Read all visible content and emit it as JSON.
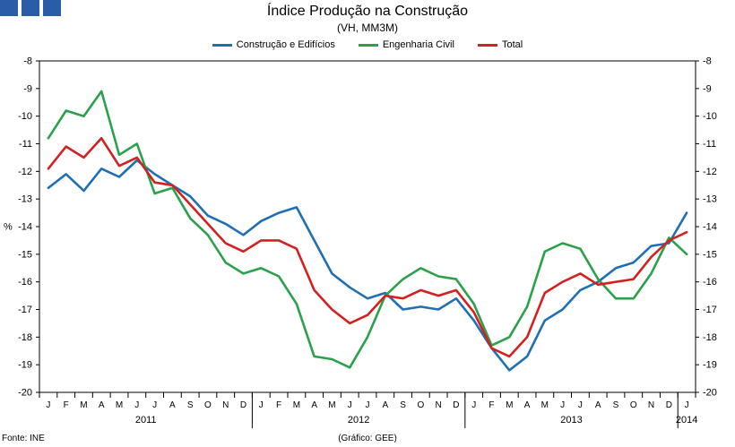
{
  "header": {
    "icon_name": "menu-blocks-icon"
  },
  "footer": {
    "source": "Fonte: INE",
    "credit": "(Gráfico: GEE)"
  },
  "chart_data": {
    "type": "line",
    "title": "Índice Produção na Construção",
    "subtitle": "(VH, MM3M)",
    "ylabel": "%",
    "ylim": [
      -20,
      -8
    ],
    "yticks": [
      -8,
      -9,
      -10,
      -11,
      -12,
      -13,
      -14,
      -15,
      -16,
      -17,
      -18,
      -19,
      -20
    ],
    "legend_position": "top-center",
    "months": [
      "J",
      "F",
      "M",
      "A",
      "M",
      "J",
      "J",
      "A",
      "S",
      "O",
      "N",
      "D",
      "J",
      "F",
      "M",
      "A",
      "M",
      "J",
      "J",
      "A",
      "S",
      "O",
      "N",
      "D",
      "J",
      "F",
      "M",
      "A",
      "M",
      "J",
      "J",
      "A",
      "S",
      "O",
      "N",
      "D",
      "J"
    ],
    "years": [
      {
        "label": "2011",
        "start": 0,
        "end": 11
      },
      {
        "label": "2012",
        "start": 12,
        "end": 23
      },
      {
        "label": "2013",
        "start": 24,
        "end": 35
      },
      {
        "label": "2014",
        "start": 36,
        "end": 36
      }
    ],
    "series": [
      {
        "name": "Construção e Edifícios",
        "color": "#1f6fb5",
        "values": [
          -12.6,
          -12.1,
          -12.7,
          -11.9,
          -12.2,
          -11.6,
          -12.1,
          -12.5,
          -12.9,
          -13.6,
          -13.9,
          -14.3,
          -13.8,
          -13.5,
          -13.3,
          -14.5,
          -15.7,
          -16.2,
          -16.6,
          -16.4,
          -17.0,
          -16.9,
          -17.0,
          -16.6,
          -17.4,
          -18.4,
          -19.2,
          -18.7,
          -17.4,
          -17.0,
          -16.3,
          -16.0,
          -15.5,
          -15.3,
          -14.7,
          -14.6,
          -13.5
        ]
      },
      {
        "name": "Engenharia Civil",
        "color": "#2aa14a",
        "values": [
          -10.8,
          -9.8,
          -10.0,
          -9.1,
          -11.4,
          -11.0,
          -12.8,
          -12.6,
          -13.7,
          -14.3,
          -15.3,
          -15.7,
          -15.5,
          -15.8,
          -16.8,
          -18.7,
          -18.8,
          -19.1,
          -18.0,
          -16.5,
          -15.9,
          -15.5,
          -15.8,
          -15.9,
          -16.8,
          -18.3,
          -18.0,
          -16.9,
          -14.9,
          -14.6,
          -14.8,
          -15.9,
          -16.6,
          -16.6,
          -15.7,
          -14.4,
          -15.0
        ]
      },
      {
        "name": "Total",
        "color": "#d42020",
        "values": [
          -11.9,
          -11.1,
          -11.5,
          -10.8,
          -11.8,
          -11.5,
          -12.4,
          -12.5,
          -13.2,
          -13.9,
          -14.6,
          -14.9,
          -14.5,
          -14.5,
          -14.8,
          -16.3,
          -17.0,
          -17.5,
          -17.2,
          -16.5,
          -16.6,
          -16.3,
          -16.5,
          -16.3,
          -17.1,
          -18.4,
          -18.7,
          -18.0,
          -16.4,
          -16.0,
          -15.7,
          -16.1,
          -16.0,
          -15.9,
          -15.1,
          -14.5,
          -14.2
        ]
      }
    ]
  }
}
